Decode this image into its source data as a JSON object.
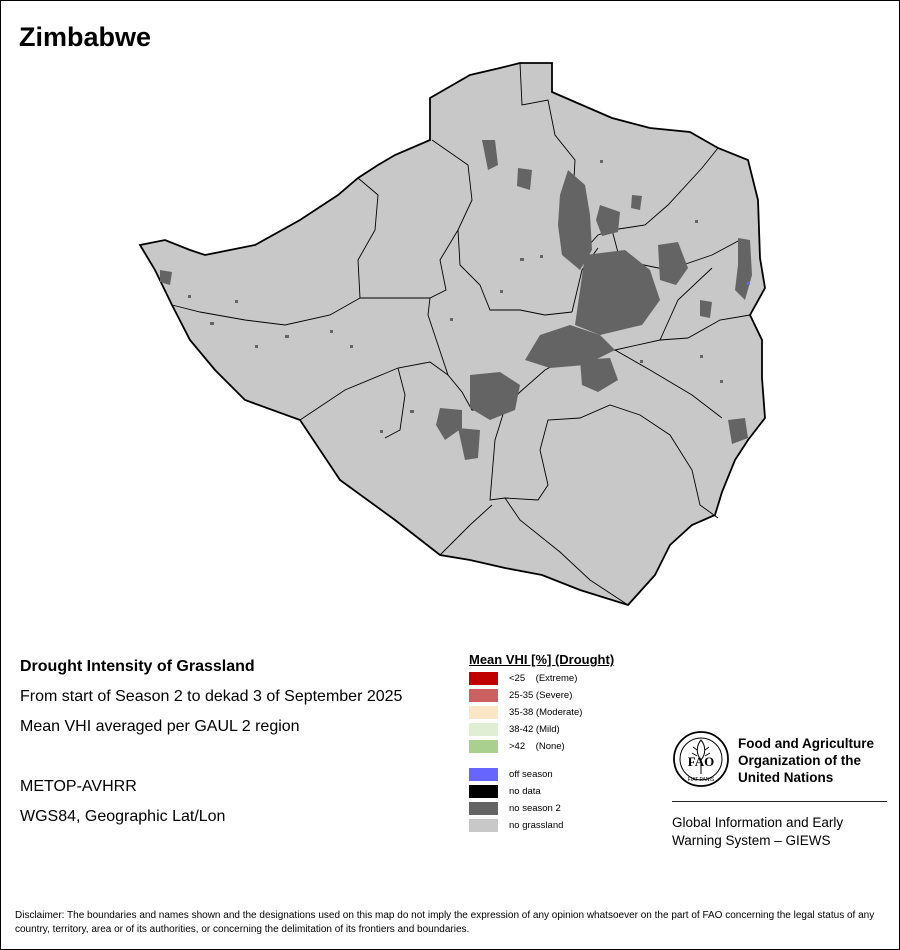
{
  "map": {
    "title": "Zimbabwe"
  },
  "info": {
    "heading": "Drought Intensity of Grassland",
    "period": "From start of Season 2 to dekad 3 of September 2025",
    "method": "Mean VHI averaged per GAUL 2 region",
    "sensor": "METOP-AVHRR",
    "projection": "WGS84, Geographic Lat/Lon"
  },
  "legend": {
    "title": "Mean VHI [%] (Drought)",
    "items": [
      {
        "label": "<25    (Extreme)",
        "color": "#c00000"
      },
      {
        "label": "25-35 (Severe)",
        "color": "#cc5f5f"
      },
      {
        "label": "35-38 (Moderate)",
        "color": "#fbe7c6"
      },
      {
        "label": "38-42 (Mild)",
        "color": "#e0efd4"
      },
      {
        "label": ">42    (None)",
        "color": "#a9d08e"
      },
      {
        "label": "off season",
        "color": "#6666ff"
      },
      {
        "label": "no data",
        "color": "#000000"
      },
      {
        "label": "no season 2",
        "color": "#646464"
      },
      {
        "label": "no grassland",
        "color": "#c8c8c8"
      }
    ]
  },
  "org": {
    "name_lines": [
      "Food and Agriculture",
      "Organization of the",
      "United Nations"
    ],
    "logo_text": "FAO",
    "logo_motto": "FIAT PANIS",
    "giews_lines": [
      "Global Information and Early",
      "Warning System – GIEWS"
    ]
  },
  "disclaimer": "Disclaimer: The boundaries and names shown and the designations used on this map do not imply the expression of any opinion whatsoever on the part of FAO concerning the legal status of any country, territory, area or of its authorities, or concerning the delimitation of its frontiers and boundaries."
}
